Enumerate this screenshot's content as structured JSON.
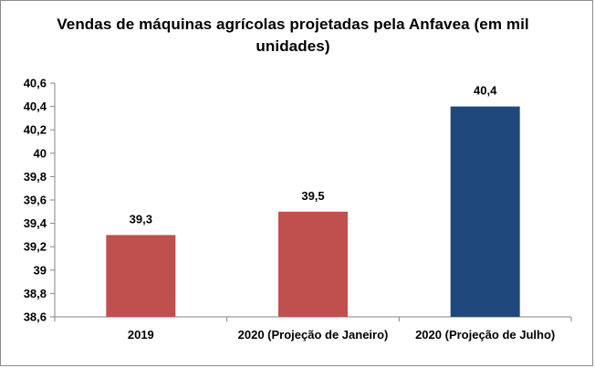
{
  "chart_data": {
    "type": "bar",
    "title": "Vendas de máquinas agrícolas projetadas pela Anfavea (em mil unidades)",
    "categories": [
      "2019",
      "2020 (Projeção de Janeiro)",
      "2020 (Projeção de Julho)"
    ],
    "values": [
      39.3,
      39.5,
      40.4
    ],
    "data_labels": [
      "39,3",
      "39,5",
      "40,4"
    ],
    "bar_colors": [
      "#c0504d",
      "#c0504d",
      "#1f497d"
    ],
    "ylim": [
      38.6,
      40.6
    ],
    "yticks": [
      "38,6",
      "38,8",
      "39",
      "39,2",
      "39,4",
      "39,6",
      "39,8",
      "40",
      "40,2",
      "40,4",
      "40,6"
    ],
    "ytick_values": [
      38.6,
      38.8,
      39.0,
      39.2,
      39.4,
      39.6,
      39.8,
      40.0,
      40.2,
      40.4,
      40.6
    ],
    "xlabel": "",
    "ylabel": "",
    "grid": false,
    "legend": "none"
  }
}
